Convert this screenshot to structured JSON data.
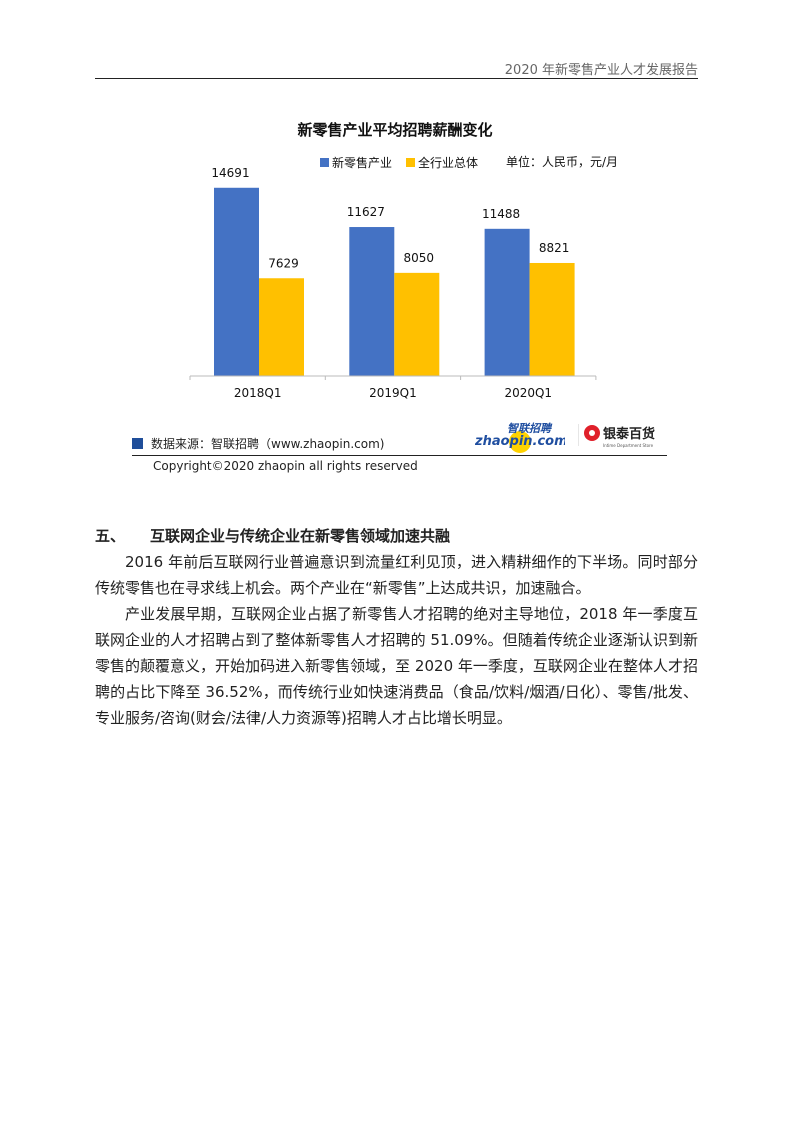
{
  "header": {
    "title": "2020 年新零售产业人才发展报告"
  },
  "chart_data": {
    "type": "bar",
    "title": "新零售产业平均招聘薪酬变化",
    "unit_note": "单位：人民币，元/月",
    "categories": [
      "2018Q1",
      "2019Q1",
      "2020Q1"
    ],
    "series": [
      {
        "name": "新零售产业",
        "values": [
          14691,
          11627,
          11488
        ],
        "color": "#4472c4"
      },
      {
        "name": "全行业总体",
        "values": [
          7629,
          8050,
          8821
        ],
        "color": "#ffc000"
      }
    ],
    "ylim": [
      0,
      16000
    ],
    "grid": false,
    "legend": "top-right",
    "data_labels": true
  },
  "source": {
    "text": "数据来源：智联招聘（www.zhaopin.com)",
    "copyright": "Copyright©2020 zhaopin all rights reserved"
  },
  "logos": {
    "zhaopin": "智联招聘 zhaopin.com",
    "yintai": "银泰百货 Intime Department Store"
  },
  "section": {
    "number": "五、",
    "heading": "互联网企业与传统企业在新零售领域加速共融",
    "paragraphs": [
      "2016 年前后互联网行业普遍意识到流量红利见顶，进入精耕细作的下半场。同时部分传统零售也在寻求线上机会。两个产业在“新零售”上达成共识，加速融合。",
      "产业发展早期，互联网企业占据了新零售人才招聘的绝对主导地位，2018 年一季度互联网企业的人才招聘占到了整体新零售人才招聘的 51.09%。但随着传统企业逐渐认识到新零售的颠覆意义，开始加码进入新零售领域，至 2020 年一季度，互联网企业在整体人才招聘的占比下降至 36.52%，而传统行业如快速消费品（食品/饮料/烟酒/日化）、零售/批发、专业服务/咨询(财会/法律/人力资源等)招聘人才占比增长明显。"
    ]
  }
}
